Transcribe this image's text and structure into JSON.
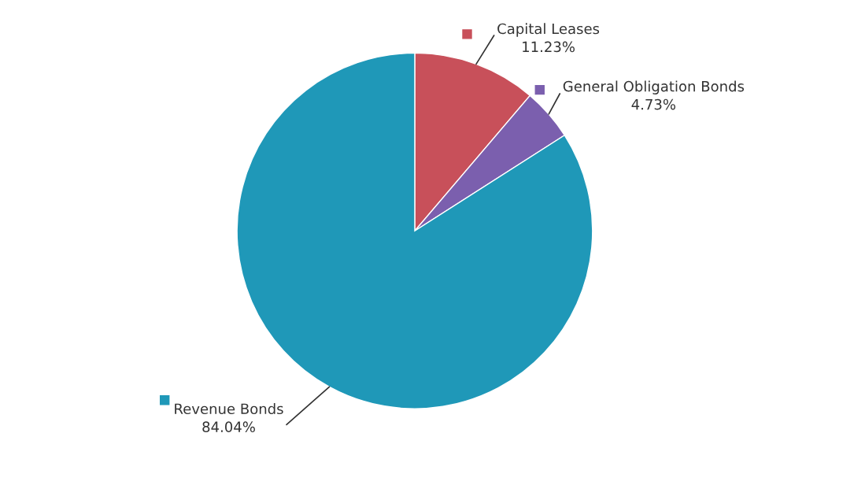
{
  "chart_data": {
    "type": "pie",
    "categories": [
      "Capital Leases",
      "General Obligation Bonds",
      "Revenue Bonds"
    ],
    "values": [
      11.23,
      4.73,
      84.04
    ],
    "colors": [
      "#c8505a",
      "#7b5fae",
      "#1f98b8"
    ],
    "value_labels": [
      "11.23%",
      "4.73%",
      "84.04%"
    ],
    "legend": "right"
  }
}
